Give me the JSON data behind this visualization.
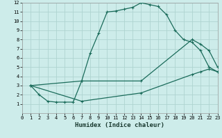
{
  "xlabel": "Humidex (Indice chaleur)",
  "background_color": "#cdecea",
  "grid_color": "#aed4d0",
  "line_color": "#1a6b5a",
  "xlim": [
    0,
    23
  ],
  "ylim": [
    0,
    12
  ],
  "xticks": [
    0,
    1,
    2,
    3,
    4,
    5,
    6,
    7,
    8,
    9,
    10,
    11,
    12,
    13,
    14,
    15,
    16,
    17,
    18,
    19,
    20,
    21,
    22,
    23
  ],
  "yticks": [
    1,
    2,
    3,
    4,
    5,
    6,
    7,
    8,
    9,
    10,
    11,
    12
  ],
  "line1_x": [
    1,
    2,
    3,
    4,
    5,
    6,
    7,
    8,
    9,
    10,
    11,
    12,
    13,
    14,
    15,
    16,
    17,
    18,
    19,
    20,
    21,
    22,
    23
  ],
  "line1_y": [
    3.0,
    2.0,
    1.3,
    1.2,
    1.2,
    1.2,
    3.5,
    6.5,
    8.7,
    11.0,
    11.1,
    11.3,
    11.5,
    12.0,
    11.8,
    11.6,
    10.7,
    9.0,
    8.0,
    7.7,
    6.8,
    5.0,
    4.5
  ],
  "line2_x": [
    1,
    7,
    14,
    20,
    21,
    22,
    23
  ],
  "line2_y": [
    3.0,
    3.5,
    3.5,
    8.0,
    7.5,
    6.8,
    5.0
  ],
  "line3_x": [
    1,
    7,
    14,
    20,
    21,
    22,
    23
  ],
  "line3_y": [
    3.0,
    1.3,
    2.2,
    4.2,
    4.5,
    4.8,
    4.5
  ],
  "marker": "+",
  "tick_fontsize": 5.0,
  "xlabel_fontsize": 6.5,
  "linewidth": 0.9,
  "markersize": 3.5
}
